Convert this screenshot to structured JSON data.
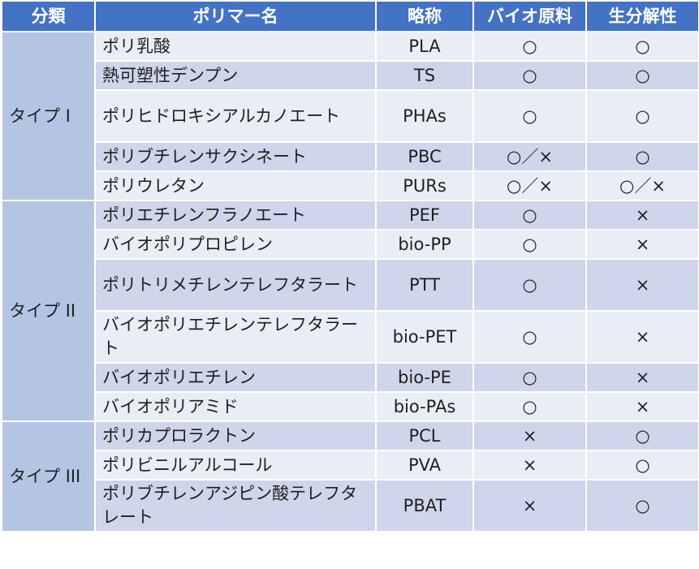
{
  "headers": [
    "分類",
    "ポリマー名",
    "略称",
    "バイオ原料",
    "生分解性"
  ],
  "groups": [
    {
      "label": "タイプ I",
      "rows": [
        {
          "name": "ポリ乳酸",
          "abbr": "PLA",
          "bio": "○",
          "degr": "○",
          "lines": 1
        },
        {
          "name": "熱可塑性デンプン",
          "abbr": "TS",
          "bio": "○",
          "degr": "○",
          "lines": 1
        },
        {
          "name": "ポリヒドロキシアルカノエート",
          "abbr": "PHAs",
          "bio": "○",
          "degr": "○",
          "lines": 2
        },
        {
          "name": "ポリブチレンサクシネート",
          "abbr": "PBC",
          "bio": "○／×",
          "degr": "○",
          "lines": 1
        },
        {
          "name": "ポリウレタン",
          "abbr": "PURs",
          "bio": "○／×",
          "degr": "○／×",
          "lines": 1
        }
      ]
    },
    {
      "label": "タイプ II",
      "rows": [
        {
          "name": "ポリエチレンフラノエート",
          "abbr": "PEF",
          "bio": "○",
          "degr": "×",
          "lines": 1
        },
        {
          "name": "バイオポリプロピレン",
          "abbr": "bio-PP",
          "bio": "○",
          "degr": "×",
          "lines": 1
        },
        {
          "name": "ポリトリメチレンテレフタラート",
          "abbr": "PTT",
          "bio": "○",
          "degr": "×",
          "lines": 2
        },
        {
          "name": "バイオポリエチレンテレフタラート",
          "abbr": "bio-PET",
          "bio": "○",
          "degr": "×",
          "lines": 2
        },
        {
          "name": "バイオポリエチレン",
          "abbr": "bio-PE",
          "bio": "○",
          "degr": "×",
          "lines": 1
        },
        {
          "name": "バイオポリアミド",
          "abbr": "bio-PAs",
          "bio": "○",
          "degr": "×",
          "lines": 1
        }
      ]
    },
    {
      "label": "タイプ III",
      "rows": [
        {
          "name": "ポリカプロラクトン",
          "abbr": "PCL",
          "bio": "×",
          "degr": "○",
          "lines": 1
        },
        {
          "name": "ポリビニルアルコール",
          "abbr": "PVA",
          "bio": "×",
          "degr": "○",
          "lines": 1
        },
        {
          "name": "ポリブチレンアジピン酸テレフタレート",
          "abbr": "PBAT",
          "bio": "×",
          "degr": "○",
          "lines": 2
        }
      ]
    }
  ]
}
